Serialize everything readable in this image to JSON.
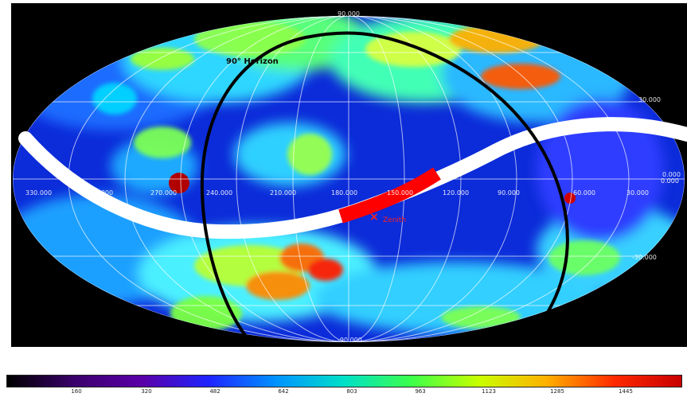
{
  "map": {
    "horizon_label": "90° Horizon",
    "zenith_label": "Zenith",
    "zenith_marker": "×",
    "longitude_labels": [
      "330.000",
      "300.000",
      "270.000",
      "240.000",
      "210.000",
      "180.000",
      "150.000",
      "120.000",
      "90.000",
      "60.000",
      "30.000",
      "0.000"
    ],
    "latitude_labels": [
      "90.000",
      "30.000",
      "0.000",
      "-30.000",
      "-90.000"
    ],
    "colors": {
      "frame": "#000000",
      "horizon_line": "#000000",
      "track_line": "#ffffff",
      "track_highlight": "#ff0000",
      "grid": "#ffffff",
      "zenith": "#ff2020",
      "label_light": "#ffffff"
    }
  },
  "colorbar": {
    "ticks": [
      "160",
      "320",
      "482",
      "642",
      "803",
      "963",
      "1123",
      "1285",
      "1445"
    ],
    "colors": [
      "#000000",
      "#3a006b",
      "#5a00a8",
      "#1f24ff",
      "#0094ff",
      "#00e0c8",
      "#3cff4a",
      "#c8ff00",
      "#ffb000",
      "#ff2a00",
      "#c80000"
    ]
  }
}
